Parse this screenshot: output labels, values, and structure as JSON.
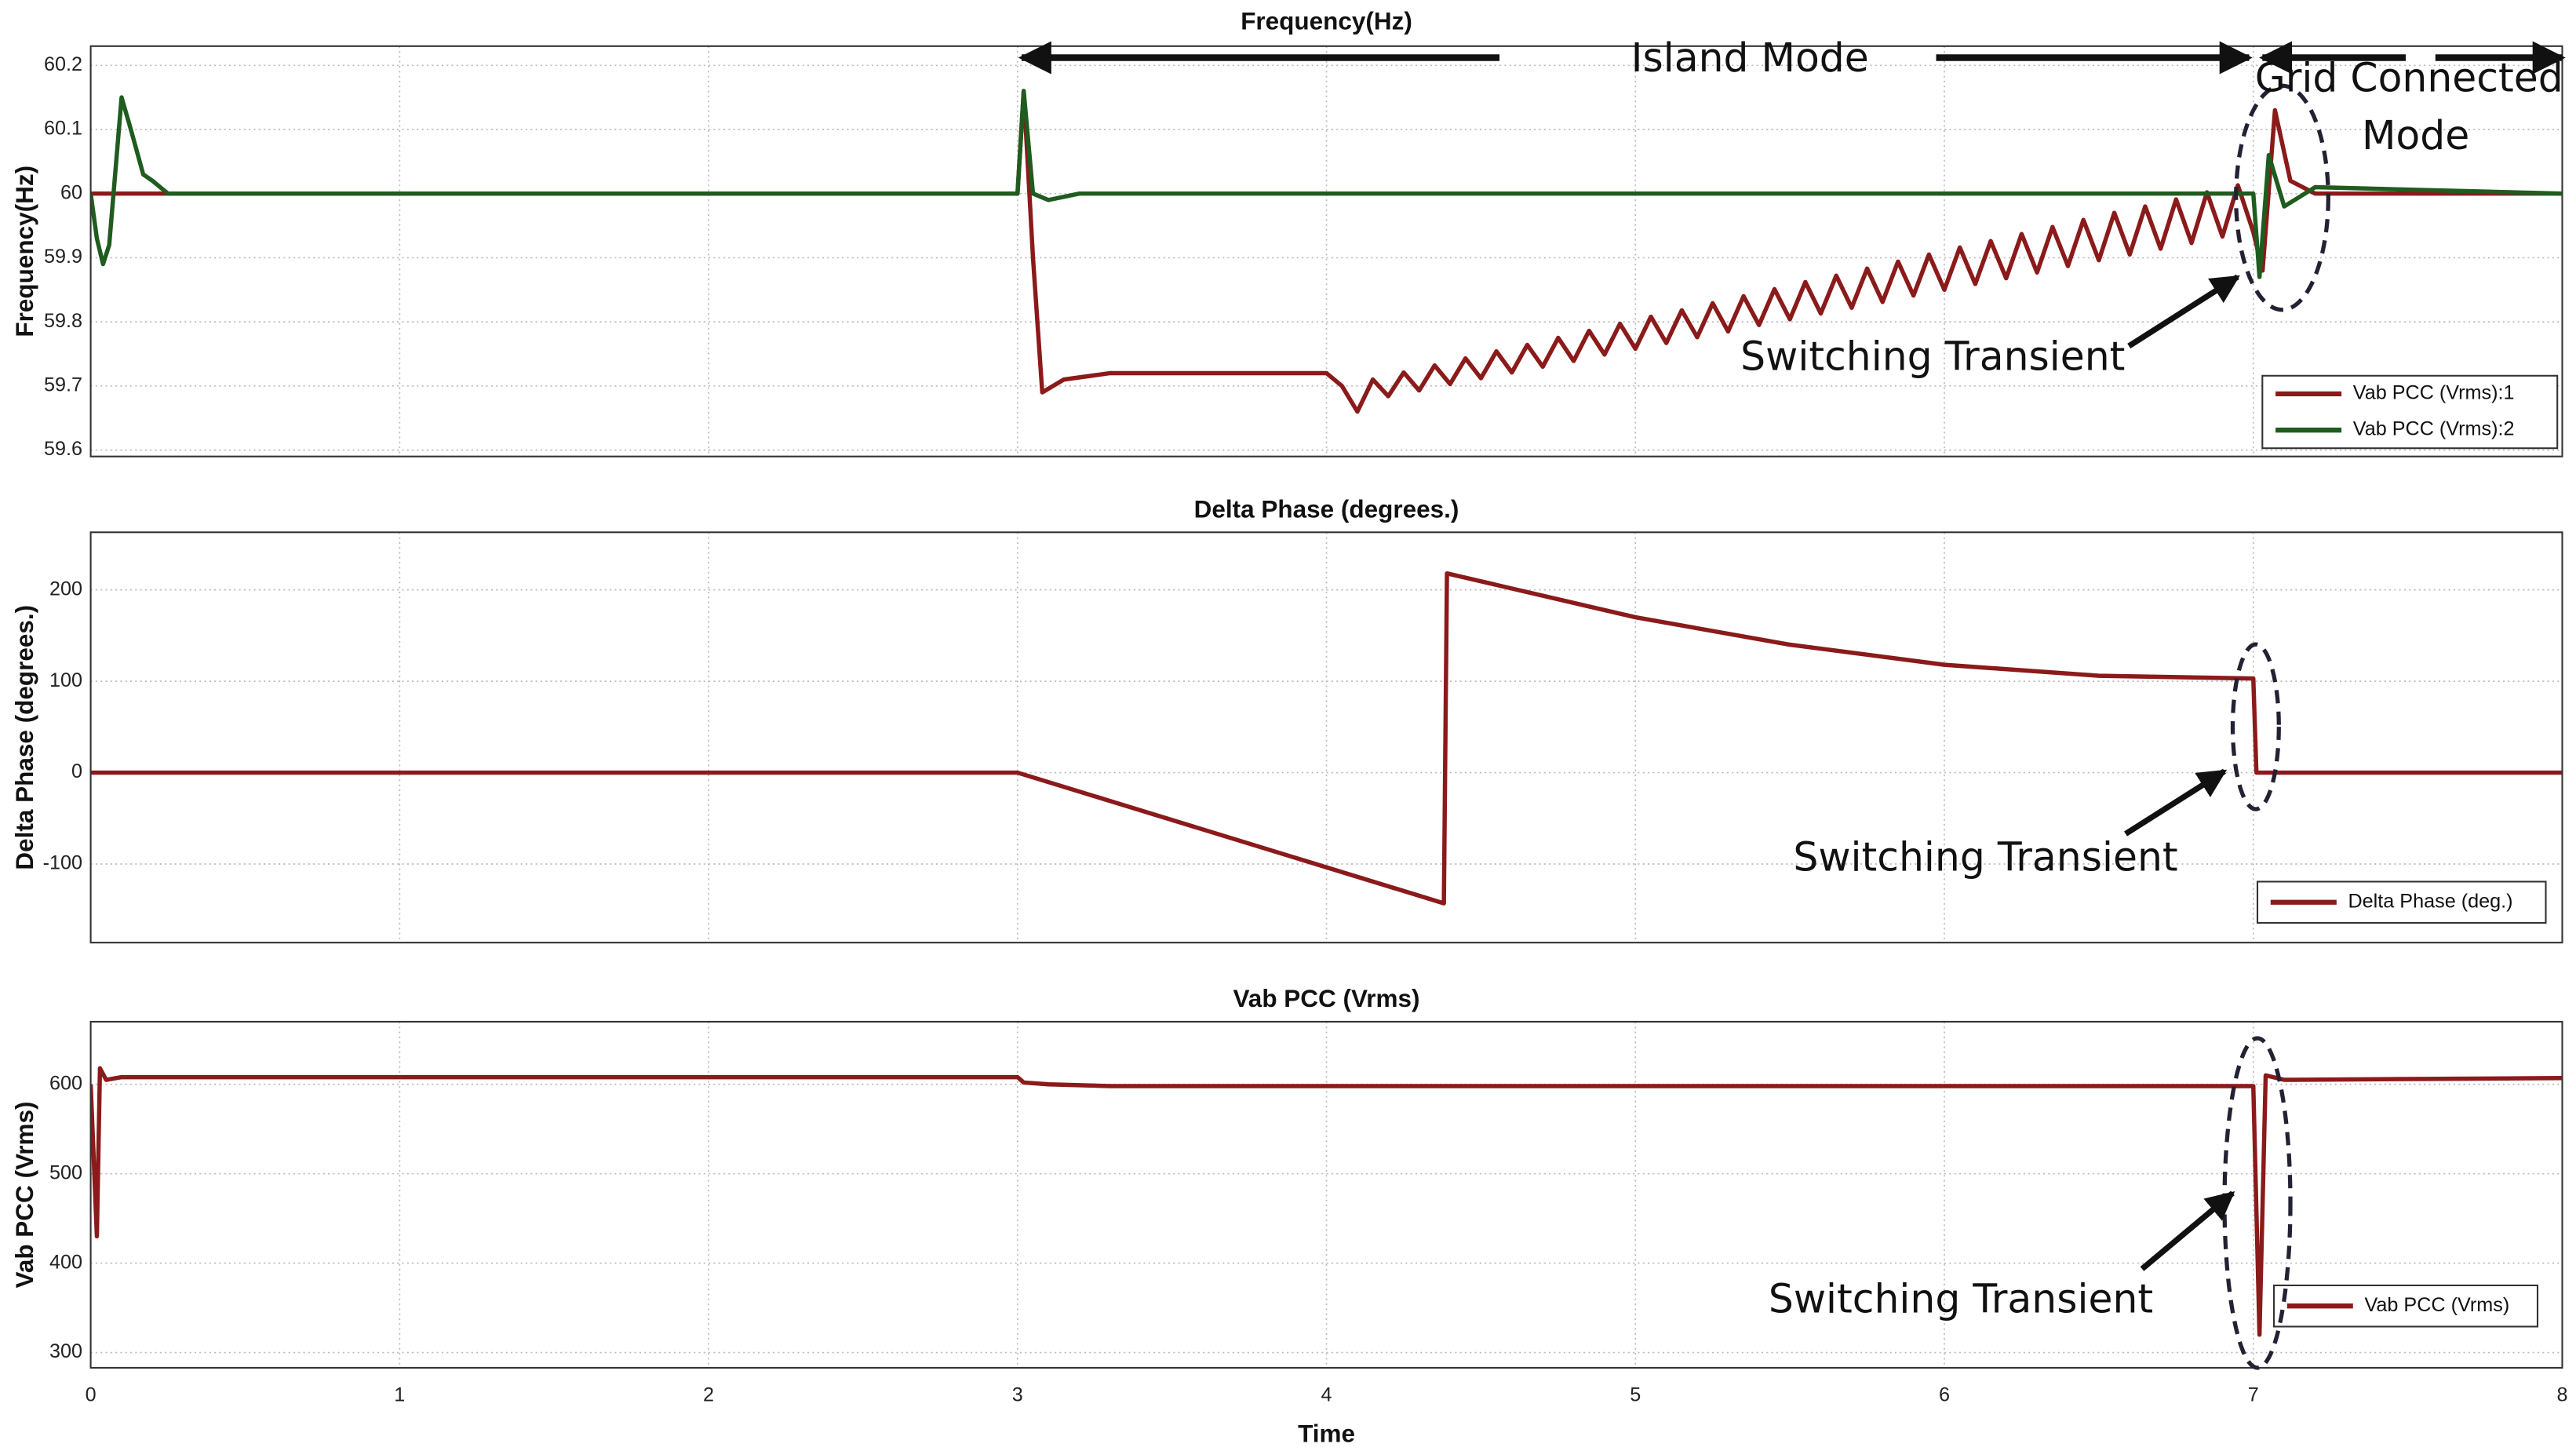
{
  "chart_data": [
    {
      "type": "line",
      "title": "Frequency(Hz)",
      "ylabel": "Frequency(Hz)",
      "xlim": [
        0,
        8
      ],
      "xticks": [
        0,
        1,
        2,
        3,
        4,
        5,
        6,
        7,
        8
      ],
      "ylim": [
        59.59,
        60.23
      ],
      "yticks": [
        59.6,
        59.7,
        59.8,
        59.9,
        60,
        60.1,
        60.2
      ],
      "grid": true,
      "legend": "lower right",
      "annotations": [
        "Island Mode",
        "Grid Connected",
        "Mode",
        "Switching Transient"
      ],
      "series": [
        {
          "name": "Vab PCC (Vrms):1",
          "color": "#8b1a1a",
          "x": [
            0,
            3.0,
            3.02,
            3.05,
            3.08,
            3.15,
            3.3,
            3.6,
            4.0,
            4.05,
            4.1,
            4.15,
            4.2,
            4.25,
            4.3,
            4.35,
            4.4,
            4.45,
            4.5,
            4.55,
            4.6,
            4.65,
            4.7,
            4.75,
            4.8,
            4.85,
            4.9,
            4.95,
            5.0,
            5.05,
            5.1,
            5.15,
            5.2,
            5.25,
            5.3,
            5.35,
            5.4,
            5.45,
            5.5,
            5.55,
            5.6,
            5.65,
            5.7,
            5.75,
            5.8,
            5.85,
            5.9,
            5.95,
            6.0,
            6.05,
            6.1,
            6.15,
            6.2,
            6.25,
            6.3,
            6.35,
            6.4,
            6.45,
            6.5,
            6.55,
            6.6,
            6.65,
            6.7,
            6.75,
            6.8,
            6.85,
            6.9,
            6.95,
            7.0,
            7.03,
            7.07,
            7.12,
            7.2,
            8
          ],
          "values": [
            60,
            60,
            60.16,
            59.9,
            59.69,
            59.71,
            59.72,
            59.72,
            59.72,
            59.7,
            59.66,
            59.71,
            59.684,
            59.721,
            59.693,
            59.732,
            59.703,
            59.743,
            59.712,
            59.754,
            59.721,
            59.764,
            59.73,
            59.775,
            59.739,
            59.786,
            59.749,
            59.797,
            59.758,
            59.808,
            59.767,
            59.818,
            59.776,
            59.829,
            59.785,
            59.84,
            59.795,
            59.851,
            59.804,
            59.862,
            59.813,
            59.872,
            59.822,
            59.883,
            59.831,
            59.894,
            59.841,
            59.905,
            59.85,
            59.916,
            59.859,
            59.926,
            59.868,
            59.937,
            59.877,
            59.948,
            59.887,
            59.959,
            59.896,
            59.97,
            59.905,
            59.98,
            59.914,
            59.991,
            59.923,
            60.002,
            59.933,
            60.013,
            59.94,
            59.88,
            60.13,
            60.02,
            60,
            60
          ]
        },
        {
          "name": "Vab PCC (Vrms):2",
          "color": "#1f5c1f",
          "x": [
            0,
            0.02,
            0.04,
            0.06,
            0.1,
            0.13,
            0.17,
            0.2,
            0.25,
            3.0,
            3.02,
            3.05,
            3.1,
            3.2,
            7.0,
            7.02,
            7.05,
            7.1,
            7.2,
            8
          ],
          "values": [
            60,
            59.93,
            59.89,
            59.92,
            60.15,
            60.1,
            60.03,
            60.02,
            60,
            60,
            60.16,
            60,
            59.99,
            60,
            60,
            59.87,
            60.06,
            59.98,
            60.01,
            60
          ]
        }
      ]
    },
    {
      "type": "line",
      "title": "Delta Phase (degrees.)",
      "ylabel": "Delta Phase (degrees.)",
      "xlim": [
        0,
        8
      ],
      "xticks": [
        0,
        1,
        2,
        3,
        4,
        5,
        6,
        7,
        8
      ],
      "ylim": [
        -186,
        263
      ],
      "yticks": [
        -100,
        0,
        100,
        200
      ],
      "grid": true,
      "legend": "lower right",
      "annotations": [
        "Switching Transient"
      ],
      "series": [
        {
          "name": "Delta Phase (deg.)",
          "color": "#8b1a1a",
          "x": [
            0,
            3,
            4.38,
            4.39,
            5,
            5.5,
            6,
            6.5,
            7.0,
            7.01,
            8
          ],
          "values": [
            0,
            0,
            -143,
            218,
            170,
            140,
            118,
            106,
            103,
            0,
            0
          ]
        }
      ]
    },
    {
      "type": "line",
      "title": "Vab PCC (Vrms)",
      "ylabel": "Vab PCC (Vrms)",
      "xlabel": "Time",
      "xlim": [
        0,
        8
      ],
      "xticks": [
        0,
        1,
        2,
        3,
        4,
        5,
        6,
        7,
        8
      ],
      "ylim": [
        283,
        670
      ],
      "yticks": [
        300,
        400,
        500,
        600
      ],
      "grid": true,
      "legend": "lower right",
      "annotations": [
        "Switching Transient"
      ],
      "series": [
        {
          "name": "Vab PCC (Vrms)",
          "color": "#8b1a1a",
          "x": [
            0,
            0.02,
            0.03,
            0.05,
            0.1,
            3.0,
            3.02,
            3.1,
            3.3,
            7.0,
            7.02,
            7.04,
            7.1,
            8
          ],
          "values": [
            600,
            430,
            618,
            605,
            608,
            608,
            602,
            600,
            598,
            598,
            320,
            610,
            605,
            607
          ]
        }
      ]
    }
  ]
}
